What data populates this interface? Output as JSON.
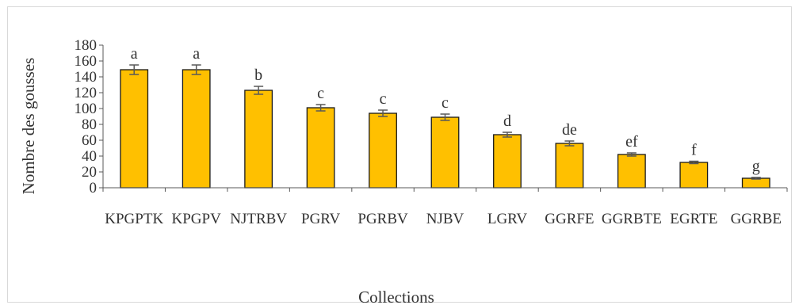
{
  "chart_data": {
    "type": "bar",
    "categories": [
      "KPGPTK",
      "KPGPV",
      "NJTRBV",
      "PGRV",
      "PGRBV",
      "NJBV",
      "LGRV",
      "GGRFE",
      "GGRBTE",
      "EGRTE",
      "GGRBE"
    ],
    "values": [
      149,
      149,
      123,
      101,
      94,
      89,
      67,
      56,
      42,
      32,
      12
    ],
    "errors": [
      6,
      6,
      5,
      4,
      4,
      4,
      3,
      3,
      2,
      1.5,
      1
    ],
    "significance_letters": [
      "a",
      "a",
      "b",
      "c",
      "c",
      "c",
      "d",
      "de",
      "ef",
      "f",
      "g"
    ],
    "ylabel": "Nombre des gousses",
    "xlabel": "Collections",
    "ylim": [
      0,
      180
    ],
    "yticks": [
      0,
      20,
      40,
      60,
      80,
      100,
      120,
      140,
      160,
      180
    ],
    "grid": false,
    "legend": "none"
  },
  "colors": {
    "bar_fill": "#FFC000",
    "bar_stroke": "#1a1a1a",
    "axis": "#595959",
    "error_bar": "#595959",
    "frame": "#d9d9d9"
  }
}
